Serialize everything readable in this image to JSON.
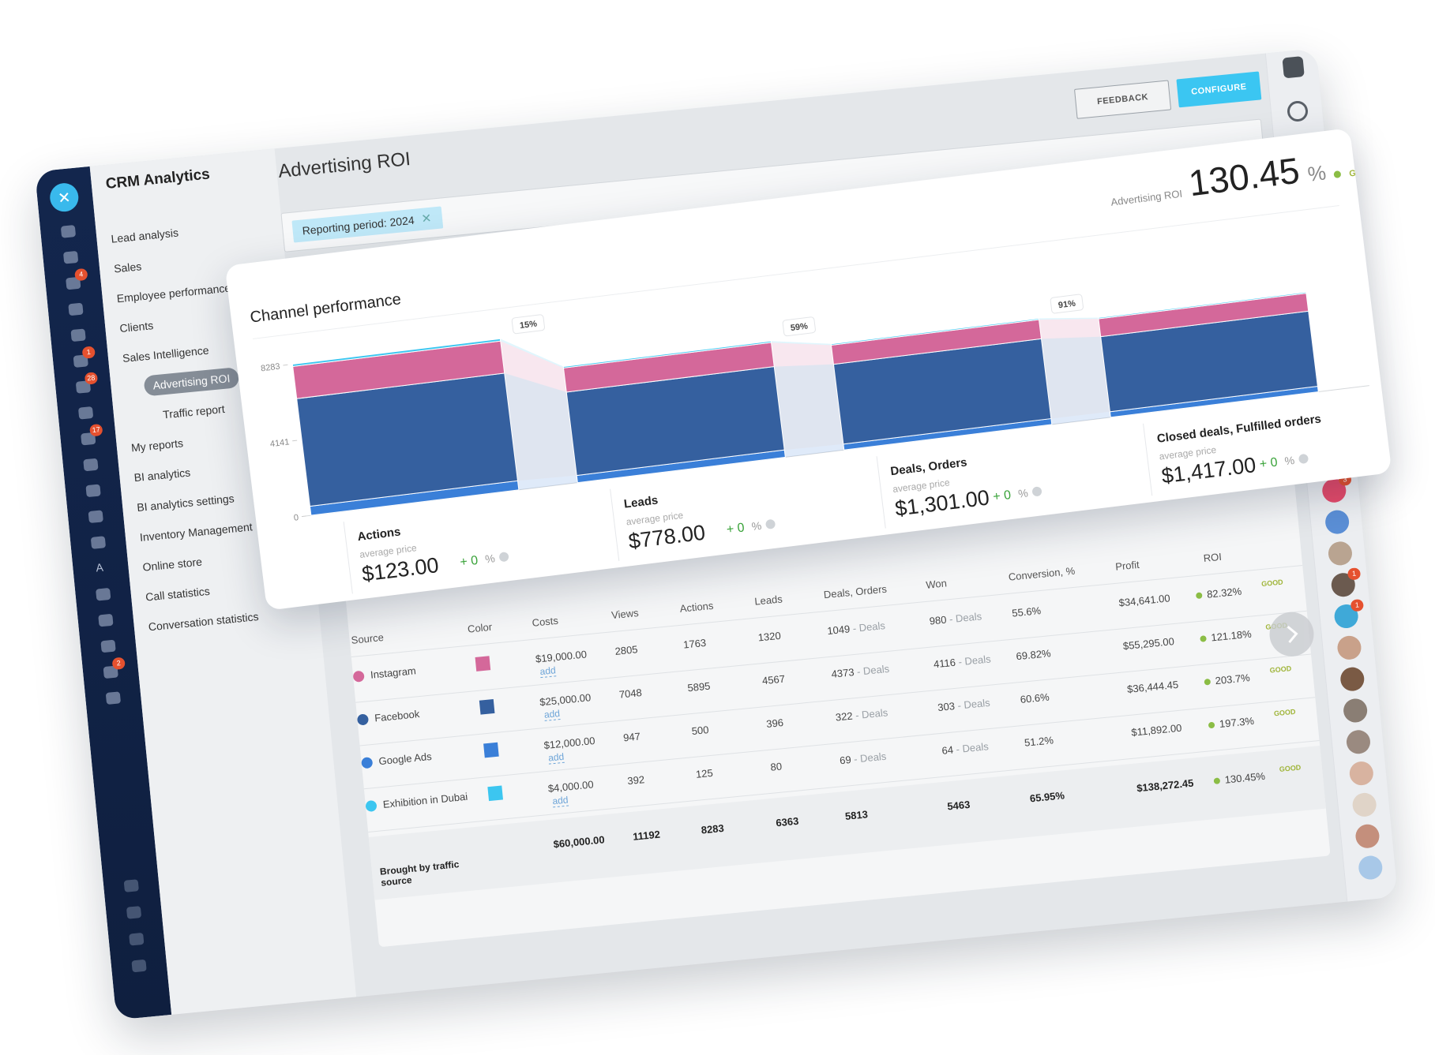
{
  "sidebar": {
    "badges": [
      4,
      1,
      28,
      17,
      2
    ],
    "letter": "A"
  },
  "menu": {
    "title": "CRM Analytics",
    "items": [
      {
        "label": "Lead analysis"
      },
      {
        "label": "Sales"
      },
      {
        "label": "Employee performance"
      },
      {
        "label": "Clients"
      },
      {
        "label": "Sales Intelligence"
      },
      {
        "label": "Advertising ROI",
        "active": true
      },
      {
        "label": "Traffic report",
        "sub": true
      },
      {
        "label": "My reports"
      },
      {
        "label": "BI analytics"
      },
      {
        "label": "BI analytics settings"
      },
      {
        "label": "Inventory Management"
      },
      {
        "label": "Online store"
      },
      {
        "label": "Call statistics"
      },
      {
        "label": "Conversation statistics"
      }
    ]
  },
  "header": {
    "title": "Advertising ROI",
    "buttons": [
      "FEEDBACK",
      "CONFIGURE"
    ],
    "filter": "Reporting period: 2024"
  },
  "rightbar": {
    "badges": [
      3,
      1,
      1
    ]
  },
  "kpi": {
    "label": "Advertising ROI",
    "value": 130.45,
    "unit": "%",
    "status": "GOOD"
  },
  "chart_data": {
    "type": "stacked-bar",
    "title": "Channel performance",
    "categories": [
      "Actions",
      "Leads",
      "Deals, Orders",
      "Closed deals, Fulfilled orders"
    ],
    "series": [
      {
        "color": "#3a7fd8",
        "values": [
          500,
          396,
          322,
          303
        ]
      },
      {
        "color": "#35609f",
        "values": [
          5895,
          4567,
          4373,
          4116
        ]
      },
      {
        "color": "#d4689a",
        "values": [
          1763,
          1320,
          1049,
          980
        ]
      },
      {
        "color": "#3cc6f0",
        "values": [
          125,
          80,
          69,
          64
        ]
      }
    ],
    "ylim": [
      0,
      8283
    ],
    "yticks": [
      0,
      4141,
      8283
    ],
    "conversion_labels": [
      "15%",
      "59%",
      "91%"
    ],
    "price_label": "average price",
    "prices": [
      "$123.00",
      "$778.00",
      "$1,301.00",
      "$1,417.00"
    ],
    "changes": [
      "+ 0",
      "+ 0",
      "+ 0",
      "+ 0"
    ],
    "change_unit": "%"
  },
  "table": {
    "columns": [
      "Source",
      "Color",
      "Costs",
      "Views",
      "Actions",
      "Leads",
      "Deals, Orders",
      "Won",
      "Conversion, %",
      "Profit",
      "ROI"
    ],
    "add_label": "add",
    "deal_suffix": "- Deals",
    "rows": [
      {
        "source": "Instagram",
        "color": "#d4689a",
        "costs": "$19,000.00",
        "views": 2805,
        "actions": 1763,
        "leads": 1320,
        "deals": 1049,
        "won": 980,
        "conversion": "55.6%",
        "profit": "$34,641.00",
        "roi": "82.32%",
        "status": "GOOD"
      },
      {
        "source": "Facebook",
        "color": "#35609f",
        "costs": "$25,000.00",
        "views": 7048,
        "actions": 5895,
        "leads": 4567,
        "deals": 4373,
        "won": 4116,
        "conversion": "69.82%",
        "profit": "$55,295.00",
        "roi": "121.18%",
        "status": "GOOD"
      },
      {
        "source": "Google Ads",
        "color": "#3a7fd8",
        "costs": "$12,000.00",
        "views": 947,
        "actions": 500,
        "leads": 396,
        "deals": 322,
        "won": 303,
        "conversion": "60.6%",
        "profit": "$36,444.45",
        "roi": "203.7%",
        "status": "GOOD"
      },
      {
        "source": "Exhibition in Dubai",
        "color": "#3cc6f0",
        "costs": "$4,000.00",
        "views": 392,
        "actions": 125,
        "leads": 80,
        "deals": 69,
        "won": 64,
        "conversion": "51.2%",
        "profit": "$11,892.00",
        "roi": "197.3%",
        "status": "GOOD"
      }
    ],
    "total": {
      "label": "Brought by traffic source",
      "costs": "$60,000.00",
      "views": 11192,
      "actions": 8283,
      "leads": 6363,
      "deals": 5813,
      "won": 5463,
      "conversion": "65.95%",
      "profit": "$138,272.45",
      "roi": "130.45%",
      "status": "GOOD"
    }
  }
}
